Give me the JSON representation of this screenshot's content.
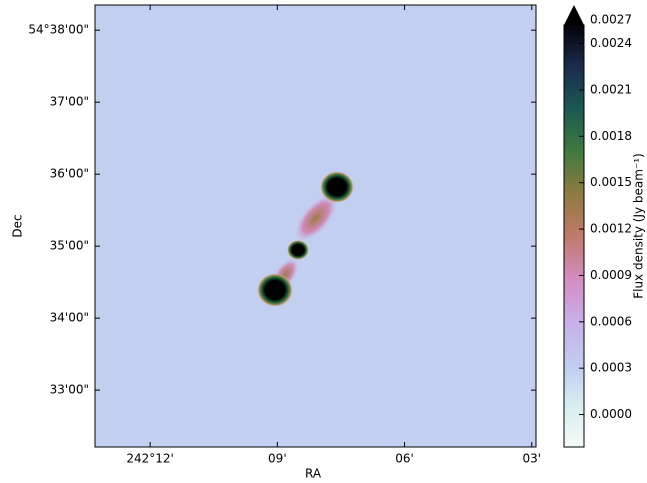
{
  "chart_data": {
    "type": "image",
    "x_label": "RA",
    "y_label": "Dec",
    "xlim": [
      13.3,
      2.9
    ],
    "xticks": [
      {
        "value": 12,
        "label": "242°12'"
      },
      {
        "value": 9,
        "label": "09'"
      },
      {
        "value": 6,
        "label": "06'"
      },
      {
        "value": 3,
        "label": "03'"
      }
    ],
    "ylim": [
      32.21,
      38.35
    ],
    "yticks": [
      {
        "value": 38,
        "label": "54°38'00\""
      },
      {
        "value": 37,
        "label": "37'00\""
      },
      {
        "value": 36,
        "label": "36'00\""
      },
      {
        "value": 35,
        "label": "35'00\""
      },
      {
        "value": 34,
        "label": "34'00\""
      },
      {
        "value": 33,
        "label": "33'00\""
      }
    ],
    "colorbar": {
      "label": "Flux density (Jy beam⁻¹)",
      "clim": [
        -0.00021,
        0.00252
      ],
      "extend_label": "0.0027",
      "ticks": [
        {
          "value": 0.0024,
          "label": "0.0024"
        },
        {
          "value": 0.0021,
          "label": "0.0021"
        },
        {
          "value": 0.0018,
          "label": "0.0018"
        },
        {
          "value": 0.0015,
          "label": "0.0015"
        },
        {
          "value": 0.0012,
          "label": "0.0012"
        },
        {
          "value": 0.0009,
          "label": "0.0009"
        },
        {
          "value": 0.0006,
          "label": "0.0006"
        },
        {
          "value": 0.0003,
          "label": "0.0003"
        },
        {
          "value": 0,
          "label": "0.0000"
        }
      ]
    }
  }
}
